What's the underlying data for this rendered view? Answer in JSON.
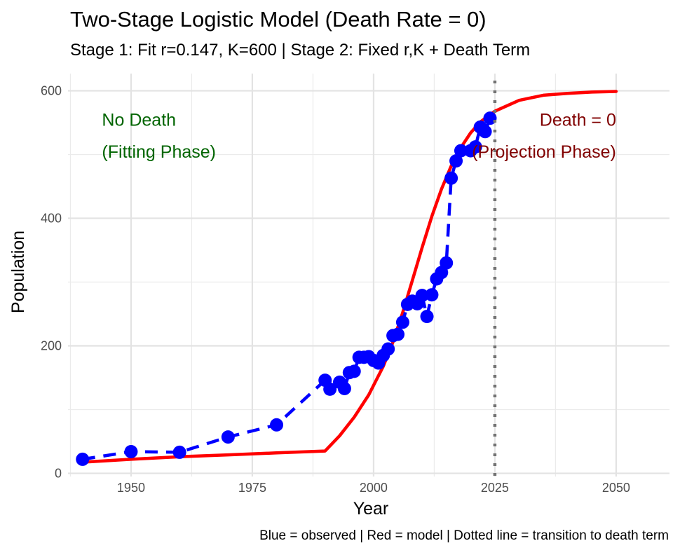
{
  "chart_data": {
    "type": "line",
    "title": "Two-Stage Logistic Model (Death Rate = 0)",
    "subtitle": "Stage 1: Fit r=0.147, K=600 | Stage 2: Fixed r,K + Death Term",
    "caption": "Blue = observed | Red = model | Dotted line = transition to death term",
    "xlabel": "Year",
    "ylabel": "Population",
    "xlim": [
      1937,
      2061
    ],
    "ylim": [
      -5,
      627
    ],
    "x_ticks": [
      1950,
      1975,
      2000,
      2025,
      2050
    ],
    "x_tick_labels": [
      "1950",
      "1975",
      "2000",
      "2025",
      "2050"
    ],
    "y_ticks": [
      0,
      200,
      400,
      600
    ],
    "y_tick_labels": [
      "0",
      "200",
      "400",
      "600"
    ],
    "grid": true,
    "legend": "none",
    "colors": {
      "observed": "#0000ff",
      "model": "#ff0000",
      "transition": "#737373",
      "no_death_text": "#006400",
      "death_text": "#800000"
    },
    "series": [
      {
        "role": "observed",
        "style": "dashed line with points",
        "x": [
          1940,
          1950,
          1960,
          1970,
          1980,
          1990,
          1991,
          1993,
          1994,
          1995,
          1996,
          1997,
          1998,
          1999,
          2000,
          2001,
          2002,
          2003,
          2004,
          2005,
          2006,
          2007,
          2008,
          2009,
          2010,
          2011,
          2012,
          2013,
          2014,
          2015,
          2016,
          2017,
          2018,
          2020,
          2021,
          2022,
          2023,
          2024
        ],
        "y": [
          22,
          34,
          33,
          57,
          76,
          146,
          132,
          143,
          133,
          158,
          160,
          182,
          182,
          183,
          177,
          173,
          185,
          195,
          216,
          218,
          237,
          265,
          270,
          266,
          279,
          246,
          280,
          305,
          315,
          330,
          463,
          490,
          506,
          506,
          512,
          543,
          536,
          557
        ]
      },
      {
        "role": "model",
        "style": "solid line",
        "x": [
          1941,
          1950,
          1960,
          1970,
          1980,
          1990,
          1993,
          1996,
          1999,
          2002,
          2004,
          2006,
          2008,
          2010,
          2012,
          2014,
          2016,
          2018,
          2020,
          2022,
          2025,
          2030,
          2035,
          2040,
          2045,
          2050
        ],
        "y": [
          18,
          22,
          26,
          29,
          32,
          35,
          59,
          88,
          123,
          168,
          206,
          252,
          303,
          354,
          403,
          446,
          482,
          511,
          534,
          551,
          568,
          585,
          593,
          596,
          598,
          599
        ]
      }
    ],
    "vline": {
      "x": 2025,
      "style": "dotted"
    },
    "annotations": [
      {
        "text": "No Death",
        "x": 1944,
        "y": 545,
        "anchor": "start",
        "role": "no_death_text"
      },
      {
        "text": "(Fitting Phase)",
        "x": 1944,
        "y": 495,
        "anchor": "start",
        "role": "no_death_text"
      },
      {
        "text": "Death = 0",
        "x": 2050,
        "y": 545,
        "anchor": "end",
        "role": "death_text"
      },
      {
        "text": "(Projection Phase)",
        "x": 2050,
        "y": 495,
        "anchor": "end",
        "role": "death_text"
      }
    ]
  }
}
